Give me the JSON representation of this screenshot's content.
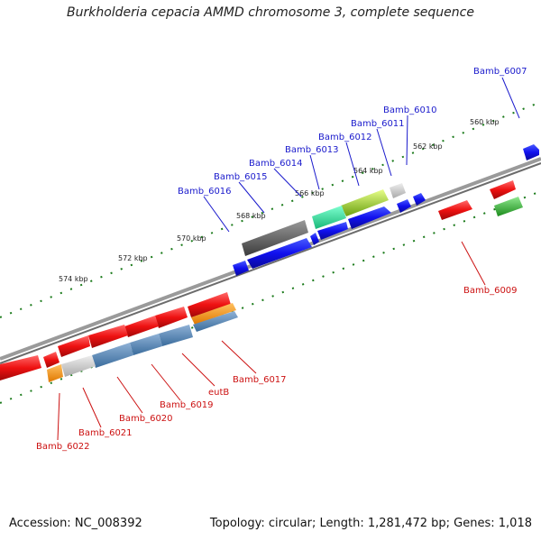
{
  "title": "Burkholderia cepacia AMMD chromosome 3, complete sequence",
  "footer": {
    "accession": "Accession: NC_008392",
    "summary": "Topology: circular; Length: 1,281,472 bp; Genes: 1,018"
  },
  "scale_ticks": [
    "560 kbp",
    "562 kbp",
    "564 kbp",
    "566 kbp",
    "568 kbp",
    "570 kbp",
    "572 kbp",
    "574 kbp"
  ],
  "gene_labels_top": [
    "Bamb_6007",
    "Bamb_6010",
    "Bamb_6011",
    "Bamb_6012",
    "Bamb_6013",
    "Bamb_6014",
    "Bamb_6015",
    "Bamb_6016"
  ],
  "gene_labels_bottom": [
    "Bamb_6009",
    "Bamb_6017",
    "eutB",
    "Bamb_6019",
    "Bamb_6020",
    "Bamb_6021",
    "Bamb_6022"
  ],
  "colors": {
    "forward_label": "#1a1acc",
    "reverse_label": "#cc1111",
    "backbone": "#808080",
    "tick": "#1a7a1a",
    "forward_gene": "#1010ee",
    "reverse_gene": "#ee1111"
  }
}
